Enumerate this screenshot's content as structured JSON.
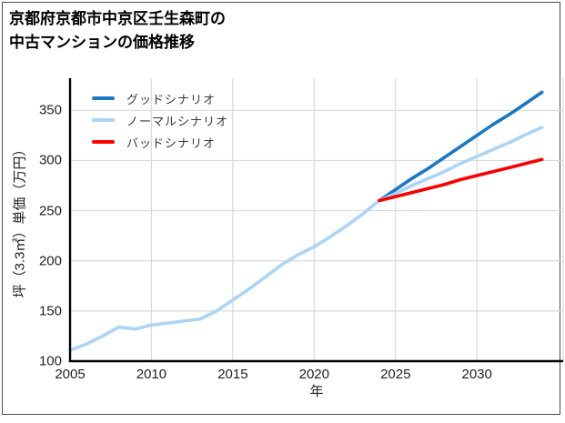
{
  "title": {
    "line1": "京都府京都市中京区壬生森町の",
    "line2": "中古マンションの価格推移"
  },
  "legend": {
    "items": [
      {
        "label": "グッドシナリオ",
        "color": "#1a78c4"
      },
      {
        "label": "ノーマルシナリオ",
        "color": "#abd4f5"
      },
      {
        "label": "バッドシナリオ",
        "color": "#f80000"
      }
    ]
  },
  "x_axis": {
    "label": "年",
    "ticks": [
      "2005",
      "2010",
      "2015",
      "2020",
      "2025",
      "2030"
    ]
  },
  "y_axis": {
    "label": "坪（3.3㎡）単価（万円）",
    "ticks": [
      "100",
      "150",
      "200",
      "250",
      "300",
      "350"
    ]
  },
  "colors": {
    "grid": "#d9d9d9",
    "spine": "#000000",
    "tick_text": "#1f1f1f"
  },
  "chart_data": {
    "type": "line",
    "title": "京都府京都市中京区壬生森町の中古マンションの価格推移",
    "xlabel": "年",
    "ylabel": "坪（3.3㎡）単価（万円）",
    "xlim": [
      2005,
      2035.3
    ],
    "ylim": [
      100,
      382
    ],
    "x_ticks": [
      2005,
      2010,
      2015,
      2020,
      2025,
      2030
    ],
    "y_ticks": [
      100,
      150,
      200,
      250,
      300,
      350
    ],
    "grid": true,
    "legend_position": "upper-left",
    "legend_frame": false,
    "series": [
      {
        "name": "グッドシナリオ",
        "color": "#1a78c4",
        "role": "good-scenario-forecast",
        "x": [
          2024,
          2025,
          2026,
          2027,
          2028,
          2029,
          2030,
          2031,
          2032,
          2033,
          2034
        ],
        "y": [
          260,
          271,
          282,
          292,
          303,
          314,
          325,
          336,
          346,
          357,
          368
        ]
      },
      {
        "name": "ノーマルシナリオ",
        "color": "#abd4f5",
        "role": "historical-and-normal-forecast",
        "x": [
          2005,
          2006,
          2007,
          2008,
          2009,
          2010,
          2011,
          2012,
          2013,
          2014,
          2015,
          2016,
          2017,
          2018,
          2019,
          2020,
          2021,
          2022,
          2023,
          2024,
          2025,
          2026,
          2027,
          2028,
          2029,
          2030,
          2031,
          2032,
          2033,
          2034
        ],
        "y": [
          111,
          117,
          125,
          134,
          132,
          136,
          138,
          140,
          142,
          150,
          161,
          172,
          184,
          196,
          206,
          214,
          224,
          235,
          247,
          260,
          267,
          275,
          282,
          289,
          297,
          304,
          311,
          318,
          326,
          333
        ]
      },
      {
        "name": "バッドシナリオ",
        "color": "#f80000",
        "role": "bad-scenario-forecast",
        "x": [
          2024,
          2025,
          2026,
          2027,
          2028,
          2029,
          2030,
          2031,
          2032,
          2033,
          2034
        ],
        "y": [
          260,
          264,
          268,
          272,
          276,
          281,
          285,
          289,
          293,
          297,
          301
        ]
      }
    ]
  }
}
